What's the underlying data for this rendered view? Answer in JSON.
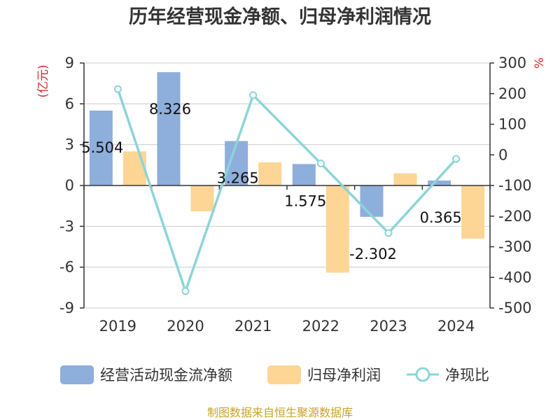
{
  "chart_data": {
    "type": "bar+line",
    "title": "历年经营现金净额、归母净利润情况",
    "categories": [
      "2019",
      "2020",
      "2021",
      "2022",
      "2023",
      "2024"
    ],
    "series": [
      {
        "name": "经营活动现金流净额",
        "type": "bar",
        "axis": "left",
        "color": "#8eaedb",
        "values": [
          5.504,
          8.326,
          3.265,
          1.575,
          -2.302,
          0.365
        ],
        "labels": [
          "5.504",
          "8.326",
          "3.265",
          "1.575",
          "-2.302",
          "0.365"
        ]
      },
      {
        "name": "归母净利润",
        "type": "bar",
        "axis": "left",
        "color": "#fdd595",
        "values": [
          2.5,
          -1.9,
          1.7,
          -6.4,
          0.9,
          -3.9
        ]
      },
      {
        "name": "净现比",
        "type": "line",
        "axis": "right",
        "color": "#8dd4d8",
        "values": [
          215,
          -445,
          195,
          -28,
          -255,
          -13
        ]
      }
    ],
    "y_left": {
      "label": "(亿元)",
      "min": -9,
      "max": 9,
      "ticks": [
        "-9",
        "-6",
        "-3",
        "0",
        "3",
        "6",
        "9"
      ],
      "tick_values": [
        -9,
        -6,
        -3,
        0,
        3,
        6,
        9
      ]
    },
    "y_right": {
      "label": "%",
      "min": -500,
      "max": 300,
      "ticks": [
        "-500",
        "-400",
        "-300",
        "-200",
        "-100",
        "0",
        "100",
        "200",
        "300"
      ],
      "tick_values": [
        -500,
        -400,
        -300,
        -200,
        -100,
        0,
        100,
        200,
        300
      ]
    },
    "grid": true,
    "legend_position": "bottom",
    "source": "制图数据来自恒生聚源数据库",
    "colors": {
      "axis_label": "#d62728",
      "source_text": "#c9a227",
      "grid": "#cccccc",
      "axis_line": "#333333"
    }
  }
}
